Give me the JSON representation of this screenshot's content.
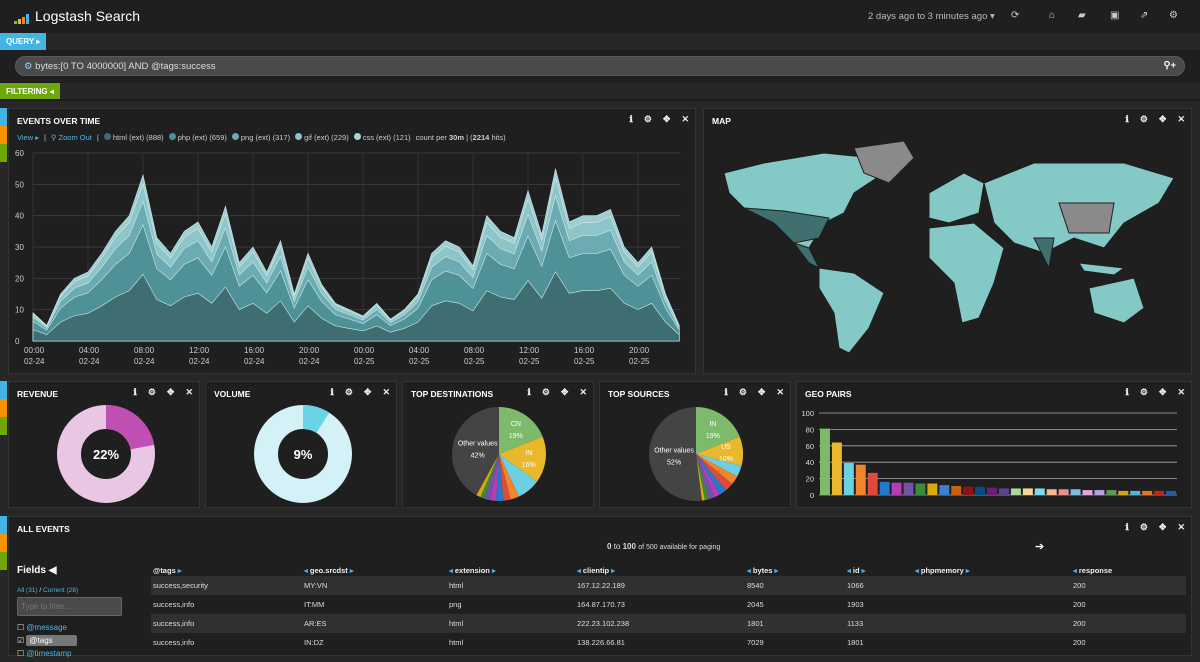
{
  "header": {
    "title": "Logstash Search",
    "timerange": "2 days ago to 3 minutes ago",
    "icons": [
      "refresh-icon",
      "home-icon",
      "folder-open-icon",
      "save-icon",
      "share-icon",
      "gear-icon"
    ]
  },
  "query": {
    "tab_label": "QUERY",
    "value": "bytes:[0 TO 4000000] AND @tags:success",
    "filter_tab_label": "FILTERING"
  },
  "colors": {
    "query": "#42b4e6",
    "filtering": "#6ea70c",
    "orange": "#f89406"
  },
  "events": {
    "title": "EVENTS OVER TIME",
    "view": "View",
    "zoom_out": "Zoom Out",
    "count_per": "count per",
    "interval": "30m",
    "hits": "2214",
    "hits_suffix": "hits",
    "chart_data": {
      "type": "area",
      "stacked": true,
      "y_ticks": [
        "0",
        "10",
        "20",
        "30",
        "40",
        "50",
        "60"
      ],
      "ylim": [
        0,
        60
      ],
      "x_ticks": [
        [
          "00:00",
          "02-24"
        ],
        [
          "04:00",
          "02-24"
        ],
        [
          "08:00",
          "02-24"
        ],
        [
          "12:00",
          "02-24"
        ],
        [
          "16:00",
          "02-24"
        ],
        [
          "20:00",
          "02-24"
        ],
        [
          "00:00",
          "02-25"
        ],
        [
          "04:00",
          "02-25"
        ],
        [
          "08:00",
          "02-25"
        ],
        [
          "12:00",
          "02-25"
        ],
        [
          "16:00",
          "02-25"
        ],
        [
          "20:00",
          "02-25"
        ]
      ],
      "series": [
        {
          "name": "html (ext)",
          "count": 888,
          "color": "#3d6c70"
        },
        {
          "name": "php (ext)",
          "count": 659,
          "color": "#4d8f96"
        },
        {
          "name": "png (ext)",
          "count": 317,
          "color": "#6aaab0"
        },
        {
          "name": "gif (ext)",
          "count": 229,
          "color": "#8cc4c8"
        },
        {
          "name": "css (ext)",
          "count": 121,
          "color": "#a8d7da"
        }
      ],
      "total_per_hour": [
        9,
        5,
        15,
        20,
        22,
        28,
        35,
        40,
        53,
        33,
        28,
        35,
        38,
        30,
        43,
        25,
        30,
        22,
        32,
        15,
        28,
        18,
        12,
        10,
        8,
        12,
        7,
        10,
        15,
        28,
        32,
        30,
        24,
        40,
        35,
        33,
        48,
        34,
        55,
        38,
        40,
        40,
        42,
        30,
        25,
        30,
        15,
        5
      ]
    }
  },
  "map": {
    "title": "MAP"
  },
  "revenue": {
    "title": "REVENUE",
    "percent": "22%",
    "value": 22,
    "fg": "#c04fb3",
    "bg": "#eac6e5"
  },
  "volume": {
    "title": "VOLUME",
    "percent": "9%",
    "value": 9,
    "fg": "#6bd3e6",
    "bg": "#d3f1f6"
  },
  "top_destinations": {
    "title": "TOP DESTINATIONS",
    "chart_data": {
      "type": "pie",
      "slices": [
        {
          "label": "CN",
          "value": 19,
          "pct": "19%",
          "color": "#7dba6c"
        },
        {
          "label": "IN",
          "value": 16,
          "pct": "16%",
          "color": "#eab82b"
        },
        {
          "label": "",
          "value": 8,
          "color": "#6dd0e0"
        },
        {
          "label": "",
          "value": 3,
          "color": "#f0862c"
        },
        {
          "label": "",
          "value": 2.5,
          "color": "#e04a3a"
        },
        {
          "label": "",
          "value": 2.5,
          "color": "#2678c9"
        },
        {
          "label": "",
          "value": 2,
          "color": "#b43fb5"
        },
        {
          "label": "",
          "value": 2,
          "color": "#7352a8"
        },
        {
          "label": "",
          "value": 1.5,
          "color": "#3d8a3b"
        },
        {
          "label": "",
          "value": 1.5,
          "color": "#d9a90d"
        },
        {
          "label": "Other values",
          "value": 42,
          "pct": "42%",
          "color": "#444444"
        }
      ]
    }
  },
  "top_sources": {
    "title": "TOP SOURCES",
    "chart_data": {
      "type": "pie",
      "slices": [
        {
          "label": "IN",
          "value": 19,
          "pct": "19%",
          "color": "#7dba6c"
        },
        {
          "label": "US",
          "value": 10,
          "pct": "10%",
          "color": "#eab82b"
        },
        {
          "label": "",
          "value": 4,
          "color": "#6dd0e0"
        },
        {
          "label": "",
          "value": 3,
          "color": "#f0862c"
        },
        {
          "label": "",
          "value": 3,
          "color": "#e04a3a"
        },
        {
          "label": "",
          "value": 2.5,
          "color": "#2678c9"
        },
        {
          "label": "",
          "value": 2,
          "color": "#b43fb5"
        },
        {
          "label": "",
          "value": 2,
          "color": "#7352a8"
        },
        {
          "label": "",
          "value": 1.5,
          "color": "#3d8a3b"
        },
        {
          "label": "",
          "value": 1,
          "color": "#d9a90d"
        },
        {
          "label": "Other values",
          "value": 52,
          "pct": "52%",
          "color": "#444444"
        }
      ]
    }
  },
  "geo_pairs": {
    "title": "GEO PAIRS",
    "chart_data": {
      "type": "bar",
      "ylim": [
        0,
        100
      ],
      "y_ticks": [
        "0",
        "20",
        "40",
        "60",
        "80",
        "100"
      ],
      "values": [
        81,
        64,
        39,
        37,
        27,
        16,
        15,
        15,
        14,
        14,
        12,
        11,
        10,
        10,
        9,
        8,
        8,
        8,
        8,
        7,
        7,
        7,
        6,
        6,
        6,
        5,
        5,
        5,
        5,
        5
      ],
      "colors": [
        "#7dba6c",
        "#eab82b",
        "#6dd0e0",
        "#f0862c",
        "#e04a3a",
        "#2678c9",
        "#b43fb5",
        "#7352a8",
        "#3d8a3b",
        "#d9a90d",
        "#3f7fcf",
        "#c9620e",
        "#8e1313",
        "#0d4a85",
        "#6c2075",
        "#5c4491",
        "#a9d89b",
        "#f5d99a",
        "#7ddcec",
        "#f7b98a",
        "#ef8f8a",
        "#79bde0",
        "#e6a2e2",
        "#b6a0e0",
        "#5a9a55",
        "#d6a70c",
        "#54b6d6",
        "#e07626",
        "#c8221a",
        "#1f5fa8"
      ]
    }
  },
  "all_events": {
    "title": "ALL EVENTS",
    "paging_from": "0",
    "paging_to": "100",
    "paging_rest": "of 500 available for paging",
    "paging_to_word": "to",
    "fields_title": "Fields",
    "fields_all": "All (31)",
    "fields_current": "Current (28)",
    "filter_placeholder": "Type to filter...",
    "fields": [
      {
        "name": "@message",
        "checked": false
      },
      {
        "name": "@tags",
        "checked": true
      },
      {
        "name": "@timestamp",
        "checked": false
      }
    ],
    "columns": [
      "@tags",
      "geo.srcdst",
      "extension",
      "clientip",
      "bytes",
      "id",
      "phpmemory",
      "response"
    ],
    "rows": [
      [
        "success,security",
        "MY:VN",
        "html",
        "167.12.22.189",
        "8540",
        "1066",
        "",
        "200"
      ],
      [
        "success,info",
        "IT:MM",
        "png",
        "164.87.170.73",
        "2045",
        "1903",
        "",
        "200"
      ],
      [
        "success,info",
        "AR:ES",
        "html",
        "222.23.102.238",
        "1801",
        "1133",
        "",
        "200"
      ],
      [
        "success,info",
        "IN:DZ",
        "html",
        "138.226.66.81",
        "7029",
        "1801",
        "",
        "200"
      ]
    ]
  }
}
